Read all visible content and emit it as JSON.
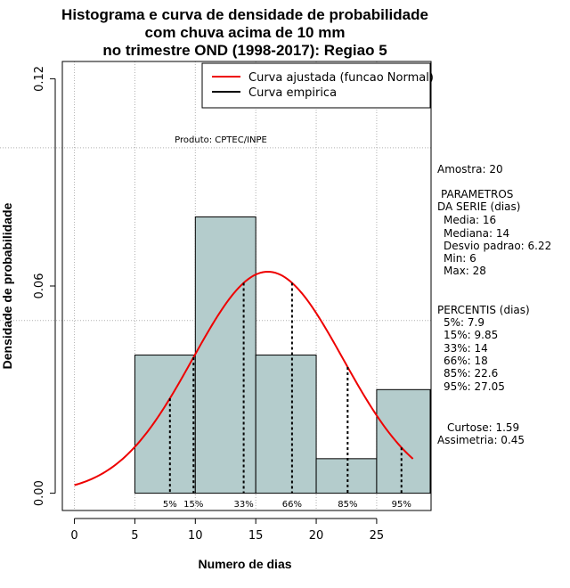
{
  "chart_data": {
    "type": "bar",
    "title_lines": [
      "Histograma e curva de densidade de probabilidade",
      "com chuva acima de 10 mm",
      "no trimestre OND (1998-2017): Regiao 5"
    ],
    "xlabel": "Numero de dias",
    "ylabel": "Densidade de probabilidade",
    "xlim": [
      -1,
      29.5
    ],
    "ylim": [
      -0.005,
      0.125
    ],
    "x_ticks": [
      0,
      5,
      10,
      15,
      20,
      25
    ],
    "y_ticks": [
      0.0,
      0.06,
      0.12
    ],
    "y_tick_labels": [
      "0.00",
      "0.06",
      "0.12"
    ],
    "x_grid": [
      0,
      5,
      10,
      15,
      20,
      25
    ],
    "y_grid": [
      0.05,
      0.1
    ],
    "bins": [
      {
        "start": 5,
        "end": 10,
        "density": 0.04
      },
      {
        "start": 10,
        "end": 15,
        "density": 0.08
      },
      {
        "start": 15,
        "end": 20,
        "density": 0.04
      },
      {
        "start": 20,
        "end": 25,
        "density": 0.01
      },
      {
        "start": 25,
        "end": 30,
        "density": 0.03
      }
    ],
    "normal_curve": {
      "mean": 16,
      "sd": 6.22,
      "x_from": 0,
      "x_to": 28
    },
    "percentile_lines": [
      {
        "label": "5%",
        "x": 7.9
      },
      {
        "label": "15%",
        "x": 9.85
      },
      {
        "label": "33%",
        "x": 14
      },
      {
        "label": "66%",
        "x": 18
      },
      {
        "label": "85%",
        "x": 22.6
      },
      {
        "label": "95%",
        "x": 27.05
      }
    ],
    "legend": [
      {
        "label": "Curva ajustada (funcao Normal)",
        "color": "#ee0000"
      },
      {
        "label": "Curva empirica",
        "color": "#000000"
      }
    ],
    "annotation": "Produto: CPTEC/INPE",
    "colors": {
      "bar_fill": "#b4cccc",
      "curve": "#ee0000",
      "grid": "#b0b0b0"
    }
  },
  "side_panel": {
    "sample": "Amostra: 20",
    "params_header_1": "PARAMETROS",
    "params_header_2": "DA SERIE (dias)",
    "stats": [
      "Media: 16",
      "Mediana: 14",
      "Desvio padrao: 6.22",
      "Min: 6",
      "Max: 28"
    ],
    "percentiles_header": "PERCENTIS (dias)",
    "percentiles": [
      "5%: 7.9",
      "15%: 9.85",
      "33%: 14",
      "66%: 18",
      "85%: 22.6",
      "95%: 27.05"
    ],
    "kurtosis": "Curtose: 1.59",
    "skewness": "Assimetria: 0.45"
  }
}
